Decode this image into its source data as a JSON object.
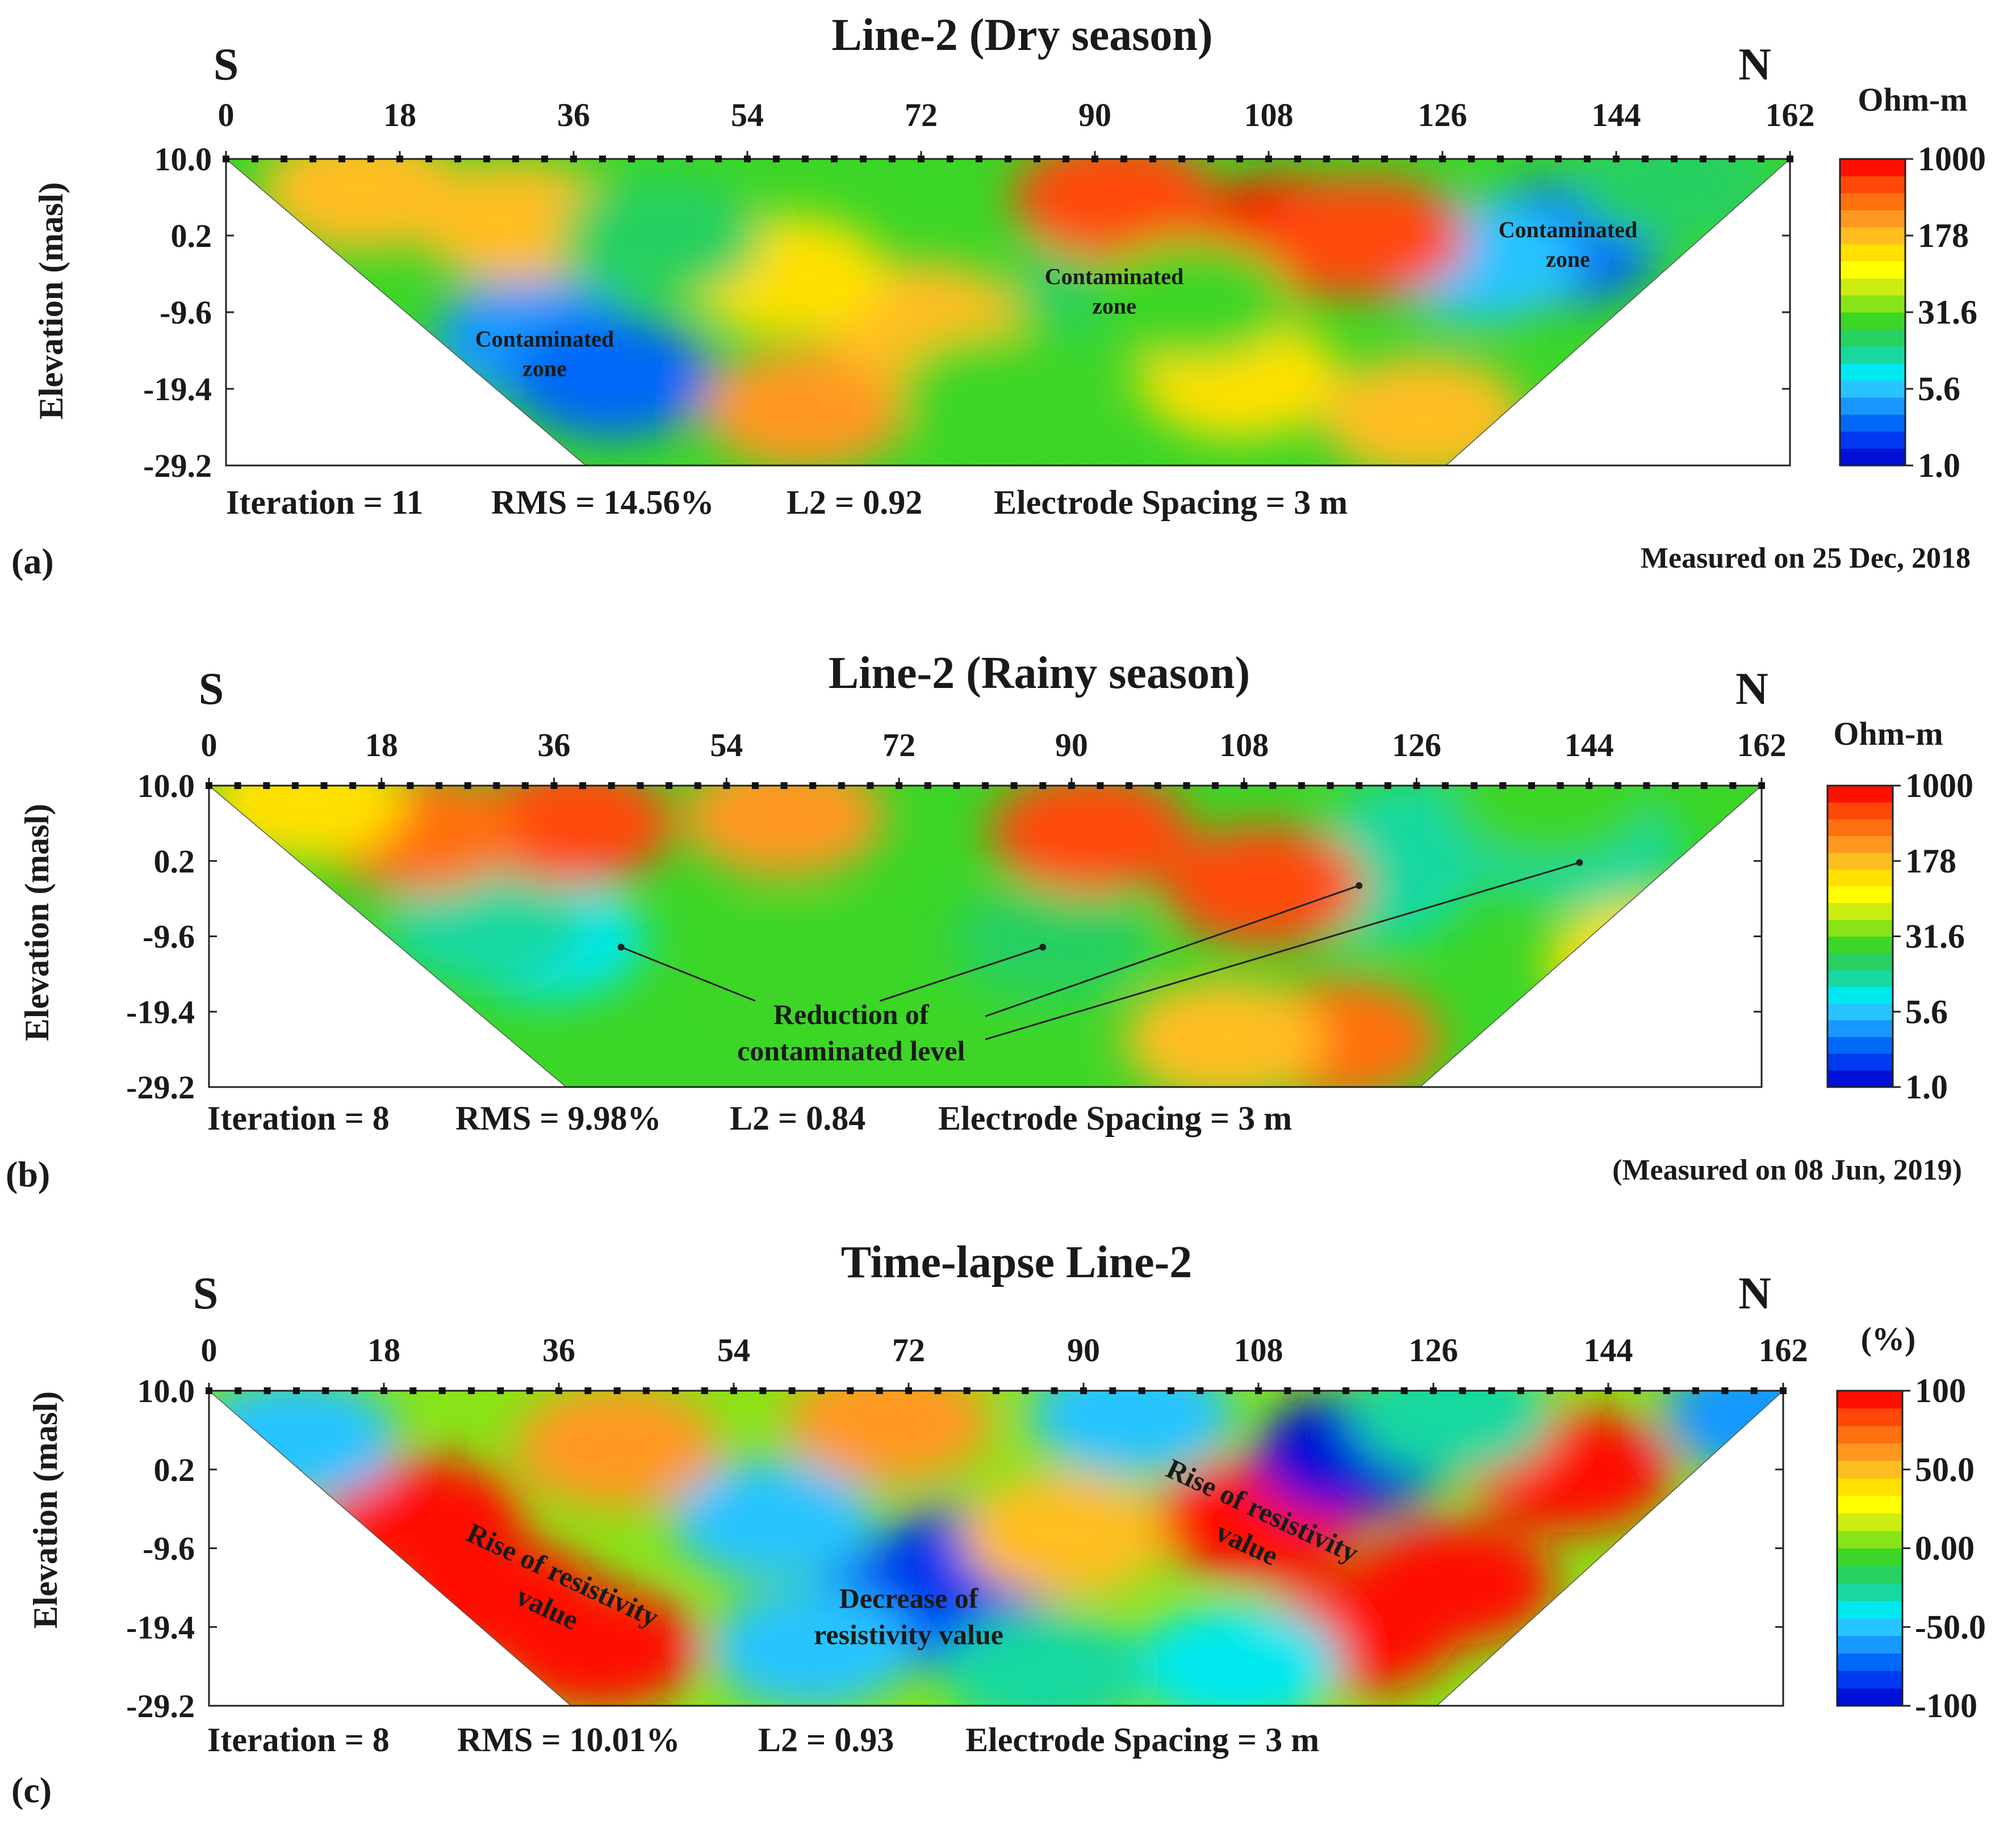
{
  "chart_data": [
    {
      "type": "heatmap",
      "panel_label": "(a)",
      "title": "Line-2 (Dry season)",
      "direction_left": "S",
      "direction_right": "N",
      "x_ticks": [
        "0",
        "18",
        "36",
        "54",
        "72",
        "90",
        "108",
        "126",
        "144",
        "162"
      ],
      "xlim": [
        0,
        162
      ],
      "ylabel": "Elevation (masl)",
      "y_ticks": [
        "10.0",
        "0.2",
        "-9.6",
        "-19.4",
        "-29.2"
      ],
      "ylim": [
        -29.2,
        10.0
      ],
      "colorbar": {
        "unit": "Ohm-m",
        "ticks": [
          "1000",
          "178",
          "31.6",
          "5.6",
          "1.0"
        ],
        "range": [
          1.0,
          1000
        ],
        "scale": "log"
      },
      "stats": {
        "iteration": "Iteration = 11",
        "rms": "RMS = 14.56%",
        "l2": "L2 = 0.92",
        "spacing": "Electrode Spacing = 3 m"
      },
      "measured": "Measured on 25 Dec, 2018",
      "annotations": [
        {
          "text": [
            "Contaminated",
            "zone"
          ],
          "x": 33,
          "y": -14
        },
        {
          "text": [
            "Contaminated",
            "zone"
          ],
          "x": 92,
          "y": -6
        },
        {
          "text": [
            "Contaminated",
            "zone"
          ],
          "x": 139,
          "y": 0
        }
      ],
      "blobs": [
        {
          "x": 32,
          "y": -13,
          "value": 3.5
        },
        {
          "x": 40,
          "y": -18,
          "value": 2.5
        },
        {
          "x": 138,
          "y": -1,
          "value": 2.5
        },
        {
          "x": 130,
          "y": -3,
          "value": 5
        },
        {
          "x": 92,
          "y": -5,
          "value": 18
        },
        {
          "x": 60,
          "y": -22,
          "value": 250
        },
        {
          "x": 72,
          "y": -11,
          "value": 180
        },
        {
          "x": 110,
          "y": 0,
          "value": 700
        },
        {
          "x": 118,
          "y": 0,
          "value": 600
        },
        {
          "x": 92,
          "y": 5,
          "value": 600
        },
        {
          "x": 30,
          "y": 2,
          "value": 200
        },
        {
          "x": 58,
          "y": -5,
          "value": 130
        },
        {
          "x": 105,
          "y": -18,
          "value": 130
        },
        {
          "x": 124,
          "y": -23,
          "value": 200
        },
        {
          "x": 150,
          "y": 7,
          "value": 15
        },
        {
          "x": 14,
          "y": 6,
          "value": 160
        },
        {
          "x": 45,
          "y": 0,
          "value": 20
        },
        {
          "x": 80,
          "y": -20,
          "value": 22
        },
        {
          "x": 100,
          "y": -8,
          "value": 25
        }
      ]
    },
    {
      "type": "heatmap",
      "panel_label": "(b)",
      "title": "Line-2 (Rainy season)",
      "direction_left": "S",
      "direction_right": "N",
      "x_ticks": [
        "0",
        "18",
        "36",
        "54",
        "72",
        "90",
        "108",
        "126",
        "144",
        "162"
      ],
      "xlim": [
        0,
        162
      ],
      "ylabel": "Elevation (masl)",
      "y_ticks": [
        "10.0",
        "0.2",
        "-9.6",
        "-19.4",
        "-29.2"
      ],
      "ylim": [
        -29.2,
        10.0
      ],
      "colorbar": {
        "unit": "Ohm-m",
        "ticks": [
          "1000",
          "178",
          "31.6",
          "5.6",
          "1.0"
        ],
        "range": [
          1.0,
          1000
        ],
        "scale": "log"
      },
      "stats": {
        "iteration": "Iteration = 8",
        "rms": "RMS = 9.98%",
        "l2": "L2 = 0.84",
        "spacing": "Electrode Spacing = 3 m"
      },
      "measured": "(Measured on 08 Jun, 2019)",
      "annotations": [
        {
          "text": [
            "Reduction of",
            "contaminated level"
          ],
          "x": 67,
          "y": -21
        }
      ],
      "arrows": [
        {
          "from": [
            57,
            -18
          ],
          "to": [
            43,
            -11
          ]
        },
        {
          "from": [
            70,
            -18
          ],
          "to": [
            87,
            -11
          ]
        },
        {
          "from": [
            81,
            -20
          ],
          "to": [
            120,
            -3
          ]
        },
        {
          "from": [
            81,
            -23
          ],
          "to": [
            143,
            0
          ]
        }
      ],
      "blobs": [
        {
          "x": 35,
          "y": -10,
          "value": 8
        },
        {
          "x": 29,
          "y": -8,
          "value": 12
        },
        {
          "x": 88,
          "y": -10,
          "value": 16
        },
        {
          "x": 121,
          "y": -3,
          "value": 14
        },
        {
          "x": 127,
          "y": 3,
          "value": 12
        },
        {
          "x": 143,
          "y": 2,
          "value": 11
        },
        {
          "x": 110,
          "y": -3,
          "value": 650
        },
        {
          "x": 118,
          "y": -23,
          "value": 350
        },
        {
          "x": 92,
          "y": 4,
          "value": 600
        },
        {
          "x": 38,
          "y": 5,
          "value": 500
        },
        {
          "x": 22,
          "y": 4,
          "value": 400
        },
        {
          "x": 60,
          "y": 6,
          "value": 300
        },
        {
          "x": 150,
          "y": -13,
          "value": 130
        },
        {
          "x": 106,
          "y": -23,
          "value": 150
        },
        {
          "x": 62,
          "y": -14,
          "value": 28
        },
        {
          "x": 80,
          "y": -26,
          "value": 28
        },
        {
          "x": 140,
          "y": 8,
          "value": 25
        },
        {
          "x": 10,
          "y": 8,
          "value": 120
        }
      ]
    },
    {
      "type": "heatmap",
      "panel_label": "(c)",
      "title": "Time-lapse Line-2",
      "direction_left": "S",
      "direction_right": "N",
      "x_ticks": [
        "0",
        "18",
        "36",
        "54",
        "72",
        "90",
        "108",
        "126",
        "144",
        "162"
      ],
      "xlim": [
        0,
        162
      ],
      "ylabel": "Elevation (masl)",
      "y_ticks": [
        "10.0",
        "0.2",
        "-9.6",
        "-19.4",
        "-29.2"
      ],
      "ylim": [
        -29.2,
        10.0
      ],
      "colorbar": {
        "unit": "(%)",
        "ticks": [
          "100",
          "50.0",
          "0.00",
          "-50.0",
          "-100"
        ],
        "range": [
          -100,
          100
        ],
        "scale": "linear"
      },
      "stats": {
        "iteration": "Iteration = 8",
        "rms": "RMS = 10.01%",
        "l2": "L2 = 0.93",
        "spacing": "Electrode Spacing = 3 m"
      },
      "measured": "",
      "annotations": [
        {
          "text": [
            "Rise of resistivity",
            "value"
          ],
          "x": 36,
          "y": -14,
          "rotate": 25
        },
        {
          "text": [
            "Decrease of",
            "resistivity value"
          ],
          "x": 72,
          "y": -17
        },
        {
          "text": [
            "Rise of resistivity",
            "value"
          ],
          "x": 108,
          "y": -6,
          "rotate": 25
        }
      ],
      "blobs": [
        {
          "x": 30,
          "y": -16,
          "value": 100
        },
        {
          "x": 22,
          "y": -6,
          "value": 100
        },
        {
          "x": 40,
          "y": -22,
          "value": 90
        },
        {
          "x": 72,
          "y": -17,
          "value": -75
        },
        {
          "x": 78,
          "y": -12,
          "value": -80
        },
        {
          "x": 62,
          "y": -22,
          "value": -55
        },
        {
          "x": 58,
          "y": -6,
          "value": -50
        },
        {
          "x": 108,
          "y": -6,
          "value": 100
        },
        {
          "x": 128,
          "y": -14,
          "value": 100
        },
        {
          "x": 140,
          "y": 0,
          "value": 100
        },
        {
          "x": 118,
          "y": -20,
          "value": 100
        },
        {
          "x": 118,
          "y": 2,
          "value": -95
        },
        {
          "x": 95,
          "y": 7,
          "value": -55
        },
        {
          "x": 106,
          "y": -24,
          "value": -40
        },
        {
          "x": 86,
          "y": -25,
          "value": -30
        },
        {
          "x": 42,
          "y": 3,
          "value": 60
        },
        {
          "x": 9,
          "y": 4,
          "value": -55
        },
        {
          "x": 160,
          "y": 7,
          "value": -60
        },
        {
          "x": 128,
          "y": 7,
          "value": -30
        },
        {
          "x": 70,
          "y": 6,
          "value": 60
        },
        {
          "x": 88,
          "y": -8,
          "value": 50
        }
      ]
    }
  ]
}
